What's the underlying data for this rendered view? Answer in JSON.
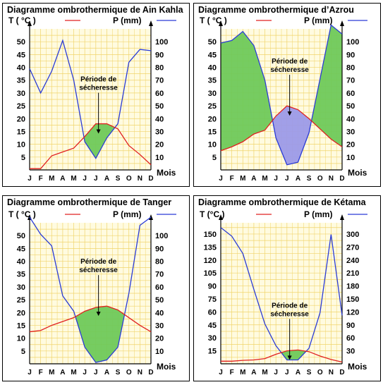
{
  "chart_data": [
    {
      "type": "line",
      "title": "Diagramme ombrothermique de Ain Kahla",
      "legend": {
        "temp": "T ( °C )",
        "precip": "P (mm)"
      },
      "xlabel": "Mois",
      "categories": [
        "J",
        "F",
        "M",
        "A",
        "M",
        "J",
        "J",
        "A",
        "S",
        "O",
        "N",
        "D"
      ],
      "y_left_ticks": [
        5,
        10,
        15,
        20,
        25,
        30,
        35,
        40,
        45,
        50
      ],
      "y_right_ticks": [
        10,
        20,
        30,
        40,
        50,
        60,
        70,
        80,
        90,
        100
      ],
      "ylim_left": [
        0,
        55
      ],
      "ylim_right": [
        0,
        110
      ],
      "series": [
        {
          "name": "T ( °C )",
          "values": [
            0.5,
            0.5,
            5.5,
            7,
            8.5,
            13,
            18,
            18,
            16,
            9.5,
            6,
            2
          ]
        },
        {
          "name": "P (mm)",
          "values": [
            79,
            60,
            77,
            101,
            70,
            22,
            9,
            25,
            36,
            84,
            94,
            93
          ]
        }
      ],
      "annotation": "Période de sécheresse",
      "colors": {
        "temp": "#e02020",
        "precip": "#2a3bd6",
        "dry": "#6fc95a",
        "grid": "#f0d46a"
      }
    },
    {
      "type": "line",
      "title": "Diagramme ombrothermique d’Azrou",
      "legend": {
        "temp": "T ( °C )",
        "precip": "P (mm)"
      },
      "xlabel": "Mois",
      "categories": [
        "J",
        "F",
        "M",
        "A",
        "M",
        "J",
        "J",
        "A",
        "S",
        "O",
        "N",
        "D"
      ],
      "y_left_ticks": [
        5,
        10,
        15,
        20,
        25,
        30,
        35,
        40,
        45,
        50
      ],
      "y_right_ticks": [
        10,
        20,
        30,
        40,
        50,
        60,
        70,
        80,
        90,
        100
      ],
      "ylim_left": [
        0,
        55
      ],
      "ylim_right": [
        0,
        110
      ],
      "series": [
        {
          "name": "T ( °C )",
          "values": [
            7.5,
            9,
            11,
            14,
            15.5,
            21,
            25,
            23.5,
            20,
            16,
            12,
            9
          ]
        },
        {
          "name": "P (mm)",
          "values": [
            99,
            101,
            108,
            97,
            70,
            25,
            4,
            6,
            29,
            71,
            113,
            106
          ]
        }
      ],
      "annotation": "Période de sécheresse",
      "colors": {
        "temp": "#e02020",
        "precip": "#2a3bd6",
        "dry": "#9c9ae8",
        "wet": "#6fc95a",
        "grid": "#f0d46a"
      }
    },
    {
      "type": "line",
      "title": "Diagramme ombrothermique de Tanger",
      "legend": {
        "temp": "T ( °C )",
        "precip": "P (mm)"
      },
      "xlabel": "Mois",
      "categories": [
        "J",
        "F",
        "M",
        "A",
        "M",
        "J",
        "J",
        "A",
        "S",
        "O",
        "N",
        "D"
      ],
      "y_left_ticks": [
        5,
        10,
        15,
        20,
        25,
        30,
        35,
        40,
        45,
        50
      ],
      "y_right_ticks": [
        10,
        20,
        30,
        40,
        50,
        60,
        70,
        80,
        90,
        100
      ],
      "ylim_left": [
        0,
        55
      ],
      "ylim_right": [
        0,
        110
      ],
      "series": [
        {
          "name": "T ( °C )",
          "values": [
            12.5,
            13,
            15,
            16.5,
            18,
            20.5,
            22,
            22.5,
            21,
            18,
            15,
            12.5
          ]
        },
        {
          "name": "P (mm)",
          "values": [
            115,
            101,
            92,
            53,
            41,
            13,
            1,
            3,
            13,
            55,
            108,
            125
          ]
        }
      ],
      "annotation": "Période de sécheresse",
      "colors": {
        "temp": "#e02020",
        "precip": "#2a3bd6",
        "dry": "#6fc95a",
        "grid": "#f0d46a"
      }
    },
    {
      "type": "line",
      "title": "Diagramme ombrothermique de Kétama",
      "legend": {
        "temp": "T (°C )",
        "precip": "P (mm)"
      },
      "xlabel": "Mois",
      "categories": [
        "J",
        "F",
        "M",
        "A",
        "M",
        "J",
        "J",
        "A",
        "S",
        "O",
        "N",
        "D"
      ],
      "y_left_ticks": [
        15,
        30,
        45,
        60,
        75,
        90,
        105,
        120,
        135,
        150
      ],
      "y_right_ticks": [
        30,
        60,
        90,
        120,
        150,
        180,
        210,
        240,
        270,
        300
      ],
      "ylim_left": [
        0,
        163
      ],
      "ylim_right": [
        0,
        326
      ],
      "series": [
        {
          "name": "T (°C )",
          "values": [
            3,
            3,
            4,
            4.5,
            6,
            11,
            15,
            16,
            14,
            9,
            5,
            2
          ]
        },
        {
          "name": "P (mm)",
          "values": [
            315,
            295,
            255,
            172,
            92,
            42,
            9,
            9,
            36,
            118,
            299,
            112
          ]
        }
      ],
      "annotation": "Période de sécheresse",
      "colors": {
        "temp": "#e02020",
        "precip": "#2a3bd6",
        "dry": "#6fc95a",
        "grid": "#f0d46a"
      }
    }
  ]
}
